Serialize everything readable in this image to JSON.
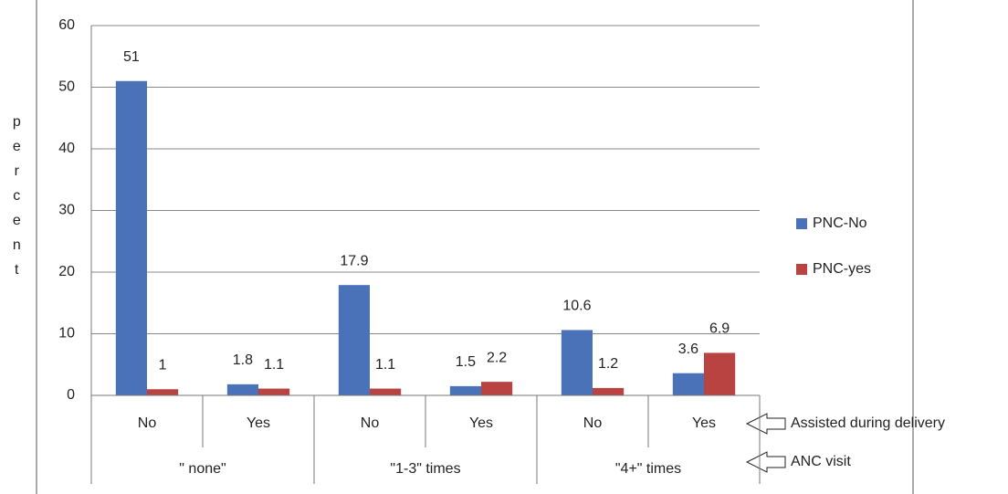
{
  "chart_data": {
    "type": "bar",
    "y_label": "percent",
    "categories": [
      "No",
      "Yes",
      "No",
      "Yes",
      "No",
      "Yes"
    ],
    "groups": [
      "\" none\"",
      "\"1-3\" times",
      "\"4+\" times"
    ],
    "category_axis_label": "Assisted during delivery",
    "group_axis_label": "ANC visit",
    "series": [
      {
        "name": "PNC-No",
        "color": "#4a72b8",
        "values": [
          51,
          1.8,
          17.9,
          1.5,
          10.6,
          3.6
        ]
      },
      {
        "name": "PNC-yes",
        "color": "#b84341",
        "values": [
          1,
          1.1,
          1.1,
          2.2,
          1.2,
          6.9
        ]
      }
    ],
    "ylim": [
      0,
      60
    ],
    "yticks": [
      0,
      10,
      20,
      30,
      40,
      50,
      60
    ],
    "grid": true,
    "legend": "right"
  }
}
